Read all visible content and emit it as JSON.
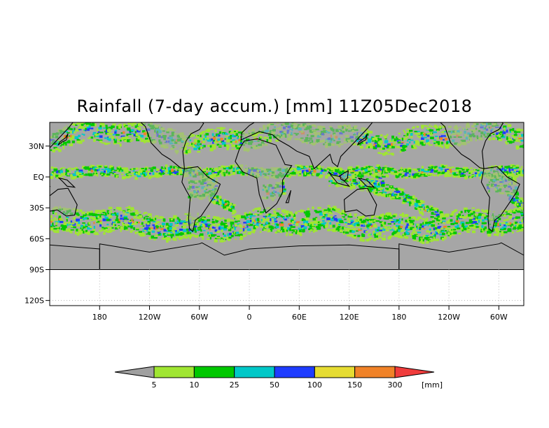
{
  "title": "Rainfall (7-day accum.) [mm] 11Z05Dec2018",
  "axes": {
    "y_ticks": [
      {
        "label": "30N",
        "lat": 30
      },
      {
        "label": "EQ",
        "lat": 0
      },
      {
        "label": "30S",
        "lat": -30
      },
      {
        "label": "60S",
        "lat": -60
      },
      {
        "label": "90S",
        "lat": -90
      },
      {
        "label": "120S",
        "lat": -120
      }
    ],
    "x_ticks": [
      {
        "label": "180",
        "lon": -180
      },
      {
        "label": "120W",
        "lon": -120
      },
      {
        "label": "60W",
        "lon": -60
      },
      {
        "label": "0",
        "lon": 0
      },
      {
        "label": "60E",
        "lon": 60
      },
      {
        "label": "120E",
        "lon": 120
      },
      {
        "label": "180",
        "lon": 180
      },
      {
        "label": "120W",
        "lon": 240
      },
      {
        "label": "60W",
        "lon": 300
      }
    ],
    "lon_range": [
      -240,
      330
    ],
    "lat_range": [
      -125,
      53
    ],
    "data_lat_range": [
      -90,
      53
    ]
  },
  "legend": {
    "unit": "[mm]",
    "thresholds": [
      "5",
      "10",
      "25",
      "50",
      "100",
      "150",
      "300"
    ],
    "colors": [
      "#a0a0a0",
      "#a0e632",
      "#00c800",
      "#00c8c8",
      "#1e3cff",
      "#e6dc32",
      "#f08228",
      "#f03c3c"
    ]
  },
  "colors": {
    "ocean_no_rain": "#a6a6a6",
    "coast": "#000000",
    "frame": "#000000"
  }
}
